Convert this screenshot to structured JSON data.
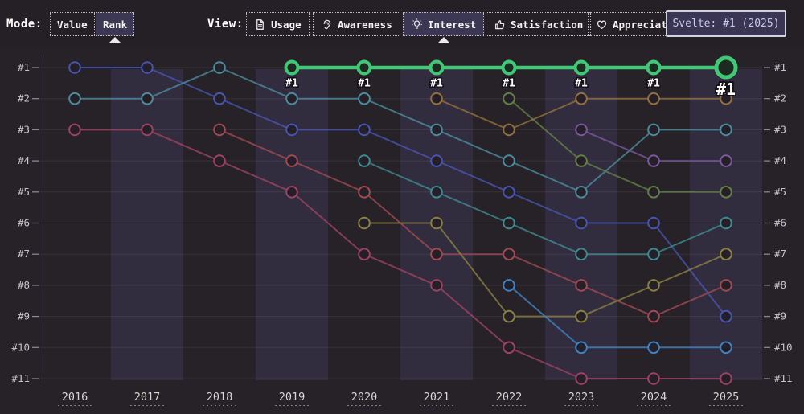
{
  "toolbar": {
    "mode_label": "Mode:",
    "modes": [
      {
        "label": "Value",
        "selected": false
      },
      {
        "label": "Rank",
        "selected": true
      }
    ],
    "view_label": "View:",
    "views": [
      {
        "label": "Usage",
        "icon": "document-icon",
        "selected": false
      },
      {
        "label": "Awareness",
        "icon": "ear-icon",
        "selected": false
      },
      {
        "label": "Interest",
        "icon": "lightbulb-icon",
        "selected": true
      },
      {
        "label": "Satisfaction",
        "icon": "thumbs-up-icon",
        "selected": false
      },
      {
        "label": "Appreciation",
        "icon": "heart-icon",
        "selected": false
      }
    ],
    "tooltip": "Svelte: #1 (2025)"
  },
  "chart_data": {
    "type": "line",
    "variant": "rank-bump",
    "x": [
      2016,
      2017,
      2018,
      2019,
      2020,
      2021,
      2022,
      2023,
      2024,
      2025
    ],
    "x_labels": [
      "2016",
      "2017",
      "2018",
      "2019",
      "2020",
      "2021",
      "2022",
      "2023",
      "2024",
      "2025"
    ],
    "rank_labels": [
      "#1",
      "#2",
      "#3",
      "#4",
      "#5",
      "#6",
      "#7",
      "#8",
      "#9",
      "#10",
      "#11"
    ],
    "ylim": [
      1,
      11
    ],
    "grid": true,
    "band_years": [
      2017,
      2019,
      2021,
      2023,
      2025
    ],
    "legend": "none",
    "highlight": {
      "name": "Svelte",
      "color": "#41c876",
      "point_label": "#1",
      "emphasis_year": 2025,
      "points": [
        [
          2019,
          1
        ],
        [
          2020,
          1
        ],
        [
          2021,
          1
        ],
        [
          2022,
          1
        ],
        [
          2023,
          1
        ],
        [
          2024,
          1
        ],
        [
          2025,
          1
        ]
      ]
    },
    "series": [
      {
        "id": "indigo",
        "color": "#4755b0",
        "points": [
          [
            2016,
            1
          ],
          [
            2017,
            1
          ],
          [
            2018,
            2
          ],
          [
            2019,
            3
          ],
          [
            2020,
            3
          ],
          [
            2021,
            4
          ],
          [
            2022,
            5
          ],
          [
            2023,
            6
          ],
          [
            2024,
            6
          ],
          [
            2025,
            9
          ]
        ]
      },
      {
        "id": "teal",
        "color": "#4a8c9d",
        "points": [
          [
            2016,
            2
          ],
          [
            2017,
            2
          ],
          [
            2018,
            1
          ],
          [
            2019,
            2
          ],
          [
            2020,
            2
          ],
          [
            2021,
            3
          ],
          [
            2022,
            4
          ],
          [
            2023,
            5
          ],
          [
            2024,
            3
          ],
          [
            2025,
            3
          ]
        ]
      },
      {
        "id": "maroon",
        "color": "#9e4263",
        "points": [
          [
            2016,
            3
          ],
          [
            2017,
            3
          ],
          [
            2018,
            4
          ],
          [
            2019,
            5
          ],
          [
            2020,
            7
          ],
          [
            2021,
            8
          ],
          [
            2022,
            10
          ],
          [
            2023,
            11
          ],
          [
            2024,
            11
          ],
          [
            2025,
            11
          ]
        ]
      },
      {
        "id": "brick",
        "color": "#a04a53",
        "points": [
          [
            2018,
            3
          ],
          [
            2019,
            4
          ],
          [
            2020,
            5
          ],
          [
            2021,
            7
          ],
          [
            2022,
            7
          ],
          [
            2023,
            8
          ],
          [
            2024,
            9
          ],
          [
            2025,
            8
          ]
        ]
      },
      {
        "id": "cyan",
        "color": "#3d8b91",
        "points": [
          [
            2020,
            4
          ],
          [
            2021,
            5
          ],
          [
            2022,
            6
          ],
          [
            2023,
            7
          ],
          [
            2024,
            7
          ],
          [
            2025,
            6
          ]
        ]
      },
      {
        "id": "olive",
        "color": "#8a8044",
        "points": [
          [
            2020,
            6
          ],
          [
            2021,
            6
          ],
          [
            2022,
            9
          ],
          [
            2023,
            9
          ],
          [
            2024,
            8
          ],
          [
            2025,
            7
          ]
        ]
      },
      {
        "id": "gold",
        "color": "#92703c",
        "points": [
          [
            2021,
            2
          ],
          [
            2022,
            3
          ],
          [
            2023,
            2
          ],
          [
            2024,
            2
          ],
          [
            2025,
            2
          ]
        ]
      },
      {
        "id": "moss",
        "color": "#627f48",
        "points": [
          [
            2022,
            2
          ],
          [
            2023,
            4
          ],
          [
            2024,
            5
          ],
          [
            2025,
            5
          ]
        ]
      },
      {
        "id": "sky",
        "color": "#3f82c4",
        "points": [
          [
            2022,
            8
          ],
          [
            2023,
            10
          ],
          [
            2024,
            10
          ],
          [
            2025,
            10
          ]
        ]
      },
      {
        "id": "violet",
        "color": "#79589c",
        "points": [
          [
            2023,
            3
          ],
          [
            2024,
            4
          ],
          [
            2025,
            4
          ]
        ]
      }
    ],
    "style": {
      "background": "#272227",
      "band": "#322d3e",
      "gridline": "rgba(255,255,255,0.07)",
      "axis_line": "#56515c",
      "tick": "#8b8692",
      "rank_label_color": "#c6c2c9",
      "year_label_color": "#d8d4d2",
      "point_fill": "#251f28"
    }
  }
}
